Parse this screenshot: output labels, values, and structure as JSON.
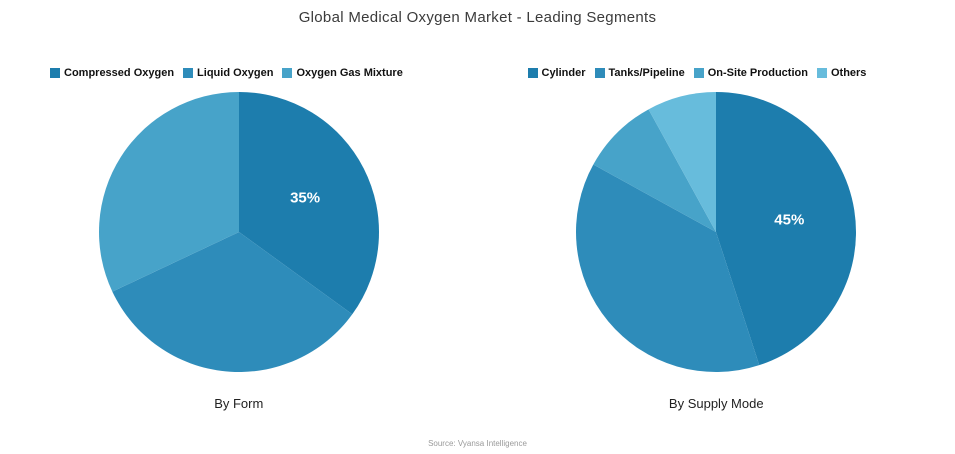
{
  "page": {
    "title": "Global Medical Oxygen Market - Leading Segments",
    "source": "Source: Vyansa Intelligence"
  },
  "colors": {
    "dark_blue": "#1d7dad",
    "medium_blue": "#2e8cba",
    "light_blue": "#47a3c9",
    "lightest_blue": "#67bcdc"
  },
  "chart_data": [
    {
      "type": "pie",
      "title": "By Form",
      "labels": [
        "Compressed Oxygen",
        "Liquid Oxygen",
        "Oxygen Gas Mixture"
      ],
      "values": [
        35,
        33,
        32
      ],
      "colors": [
        "#1d7dad",
        "#2e8cba",
        "#47a3c9"
      ],
      "slice_labels": [
        "35%",
        "",
        ""
      ],
      "start_angle_deg": 0,
      "direction": "clockwise",
      "legend_position": "top"
    },
    {
      "type": "pie",
      "title": "By Supply Mode",
      "labels": [
        "Cylinder",
        "Tanks/Pipeline",
        "On-Site Production",
        "Others"
      ],
      "values": [
        45,
        38,
        9,
        8
      ],
      "colors": [
        "#1d7dad",
        "#2e8cba",
        "#47a3c9",
        "#67bcdc"
      ],
      "slice_labels": [
        "45%",
        "",
        "",
        ""
      ],
      "start_angle_deg": 0,
      "direction": "clockwise",
      "legend_position": "top"
    }
  ]
}
